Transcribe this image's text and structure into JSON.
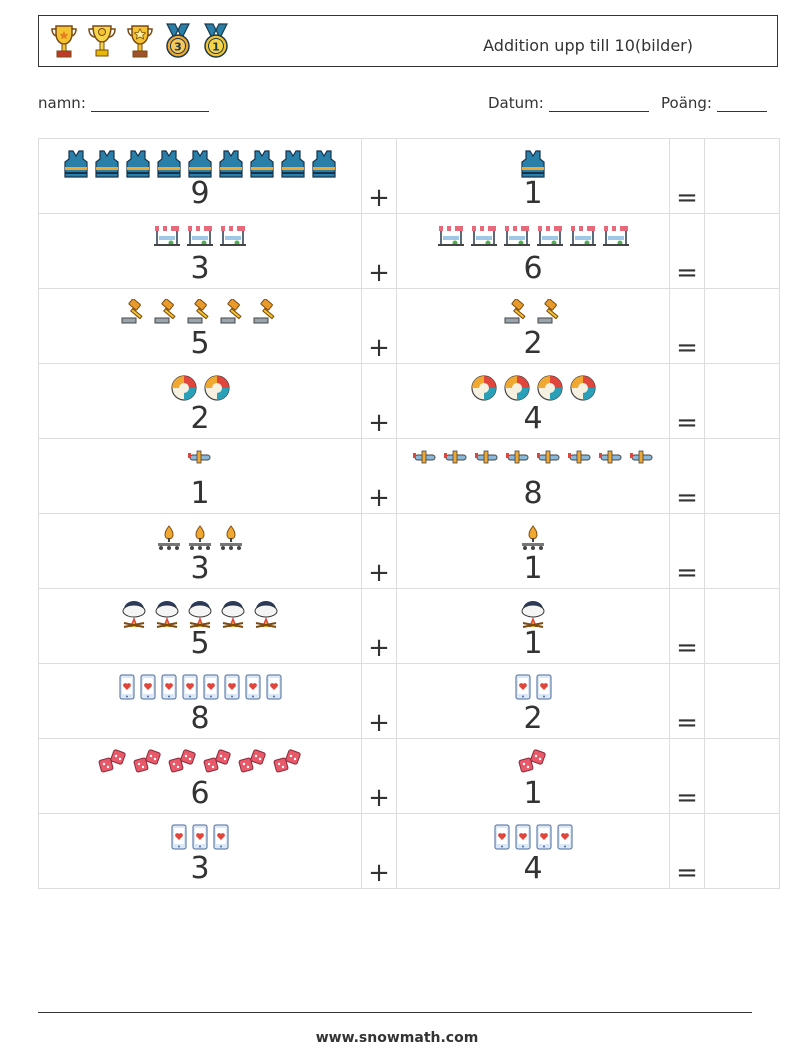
{
  "header": {
    "title": "Addition upp till 10(bilder)",
    "trophies": [
      "gold-cup-icon",
      "gold-cup-icon",
      "gold-cup-icon",
      "medal-3-icon",
      "medal-1-icon"
    ]
  },
  "form": {
    "name_label": "namn:",
    "date_label": "Datum:",
    "score_label": "Poäng:"
  },
  "operators": {
    "plus": "+",
    "equals": "="
  },
  "rows": [
    {
      "a": "9",
      "a_icon": "vest-icon",
      "b": "1",
      "b_icon": "vest-icon"
    },
    {
      "a": "3",
      "a_icon": "market-stall-icon",
      "b": "6",
      "b_icon": "market-stall-icon"
    },
    {
      "a": "5",
      "a_icon": "gavel-icon",
      "b": "2",
      "b_icon": "gavel-icon"
    },
    {
      "a": "2",
      "a_icon": "beach-ball-icon",
      "b": "4",
      "b_icon": "beach-ball-icon"
    },
    {
      "a": "1",
      "a_icon": "airplane-icon",
      "b": "8",
      "b_icon": "airplane-icon"
    },
    {
      "a": "3",
      "a_icon": "conveyor-flame-icon",
      "b": "1",
      "b_icon": "conveyor-flame-icon"
    },
    {
      "a": "5",
      "a_icon": "campfire-pot-icon",
      "b": "1",
      "b_icon": "campfire-pot-icon"
    },
    {
      "a": "8",
      "a_icon": "phone-heart-icon",
      "b": "2",
      "b_icon": "phone-heart-icon"
    },
    {
      "a": "6",
      "a_icon": "dice-icon",
      "b": "1",
      "b_icon": "dice-icon"
    },
    {
      "a": "3",
      "a_icon": "phone-heart-icon",
      "b": "4",
      "b_icon": "phone-heart-icon"
    }
  ],
  "footer": {
    "url": "www.snowmath.com"
  }
}
